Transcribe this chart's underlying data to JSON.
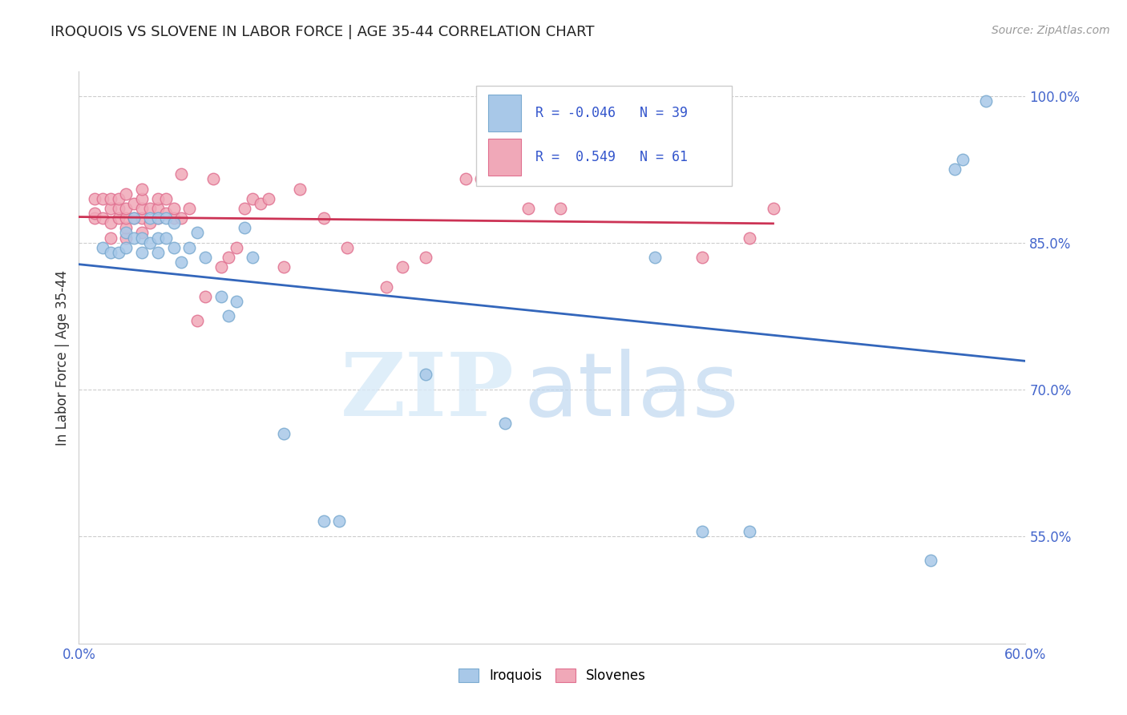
{
  "title": "IROQUOIS VS SLOVENE IN LABOR FORCE | AGE 35-44 CORRELATION CHART",
  "source": "Source: ZipAtlas.com",
  "ylabel": "In Labor Force | Age 35-44",
  "xlim": [
    0.0,
    0.6
  ],
  "ylim": [
    0.44,
    1.025
  ],
  "x_ticks": [
    0.0,
    0.12,
    0.24,
    0.36,
    0.48,
    0.6
  ],
  "y_ticks": [
    0.55,
    0.7,
    0.85,
    1.0
  ],
  "y_tick_labels": [
    "55.0%",
    "70.0%",
    "85.0%",
    "100.0%"
  ],
  "legend_blue_R": "-0.046",
  "legend_blue_N": "39",
  "legend_pink_R": "0.549",
  "legend_pink_N": "61",
  "blue_color": "#a8c8e8",
  "pink_color": "#f0a8b8",
  "blue_edge_color": "#7aaad0",
  "pink_edge_color": "#e07090",
  "blue_line_color": "#3366bb",
  "pink_line_color": "#cc3355",
  "watermark_zip_color": "#d8eaf8",
  "watermark_atlas_color": "#c0d8f0",
  "iroquois_x": [
    0.015,
    0.02,
    0.025,
    0.03,
    0.03,
    0.035,
    0.035,
    0.04,
    0.04,
    0.045,
    0.045,
    0.05,
    0.05,
    0.05,
    0.055,
    0.055,
    0.06,
    0.06,
    0.065,
    0.07,
    0.075,
    0.08,
    0.09,
    0.095,
    0.1,
    0.105,
    0.11,
    0.13,
    0.155,
    0.165,
    0.22,
    0.27,
    0.365,
    0.395,
    0.425,
    0.54,
    0.555,
    0.56,
    0.575
  ],
  "iroquois_y": [
    0.845,
    0.84,
    0.84,
    0.845,
    0.86,
    0.855,
    0.875,
    0.84,
    0.855,
    0.85,
    0.875,
    0.84,
    0.855,
    0.875,
    0.855,
    0.875,
    0.845,
    0.87,
    0.83,
    0.845,
    0.86,
    0.835,
    0.795,
    0.775,
    0.79,
    0.865,
    0.835,
    0.655,
    0.565,
    0.565,
    0.715,
    0.665,
    0.835,
    0.555,
    0.555,
    0.525,
    0.925,
    0.935,
    0.995
  ],
  "slovene_x": [
    0.01,
    0.01,
    0.01,
    0.015,
    0.015,
    0.02,
    0.02,
    0.02,
    0.02,
    0.025,
    0.025,
    0.025,
    0.03,
    0.03,
    0.03,
    0.03,
    0.03,
    0.035,
    0.035,
    0.04,
    0.04,
    0.04,
    0.04,
    0.04,
    0.045,
    0.045,
    0.05,
    0.05,
    0.05,
    0.055,
    0.055,
    0.06,
    0.06,
    0.065,
    0.065,
    0.07,
    0.075,
    0.08,
    0.085,
    0.09,
    0.095,
    0.1,
    0.105,
    0.11,
    0.115,
    0.12,
    0.13,
    0.14,
    0.155,
    0.17,
    0.195,
    0.205,
    0.22,
    0.245,
    0.255,
    0.285,
    0.305,
    0.34,
    0.395,
    0.425,
    0.44
  ],
  "slovene_y": [
    0.875,
    0.88,
    0.895,
    0.875,
    0.895,
    0.855,
    0.87,
    0.885,
    0.895,
    0.875,
    0.885,
    0.895,
    0.855,
    0.865,
    0.875,
    0.885,
    0.9,
    0.875,
    0.89,
    0.86,
    0.875,
    0.885,
    0.895,
    0.905,
    0.87,
    0.885,
    0.875,
    0.885,
    0.895,
    0.88,
    0.895,
    0.875,
    0.885,
    0.875,
    0.92,
    0.885,
    0.77,
    0.795,
    0.915,
    0.825,
    0.835,
    0.845,
    0.885,
    0.895,
    0.89,
    0.895,
    0.825,
    0.905,
    0.875,
    0.845,
    0.805,
    0.825,
    0.835,
    0.915,
    0.915,
    0.885,
    0.885,
    0.95,
    0.835,
    0.855,
    0.885
  ]
}
